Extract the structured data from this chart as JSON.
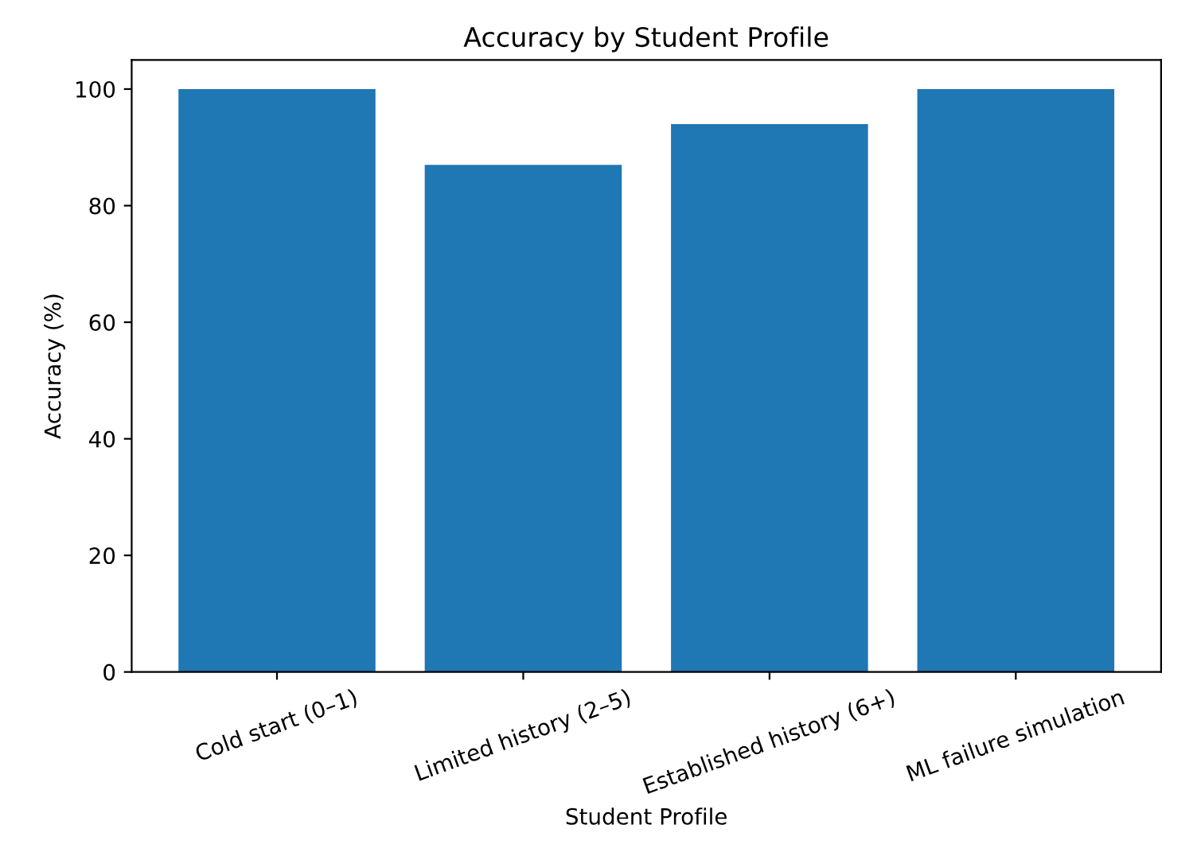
{
  "chart_data": {
    "type": "bar",
    "title": "Accuracy by Student Profile",
    "xlabel": "Student Profile",
    "ylabel": "Accuracy (%)",
    "categories": [
      "Cold start (0–1)",
      "Limited history (2–5)",
      "Established history (6+)",
      "ML failure simulation"
    ],
    "values": [
      100,
      87,
      94,
      100
    ],
    "color": "#1f77b4",
    "ylim": [
      0,
      105
    ],
    "yticks": [
      0,
      20,
      40,
      60,
      80,
      100
    ],
    "grid": false
  }
}
